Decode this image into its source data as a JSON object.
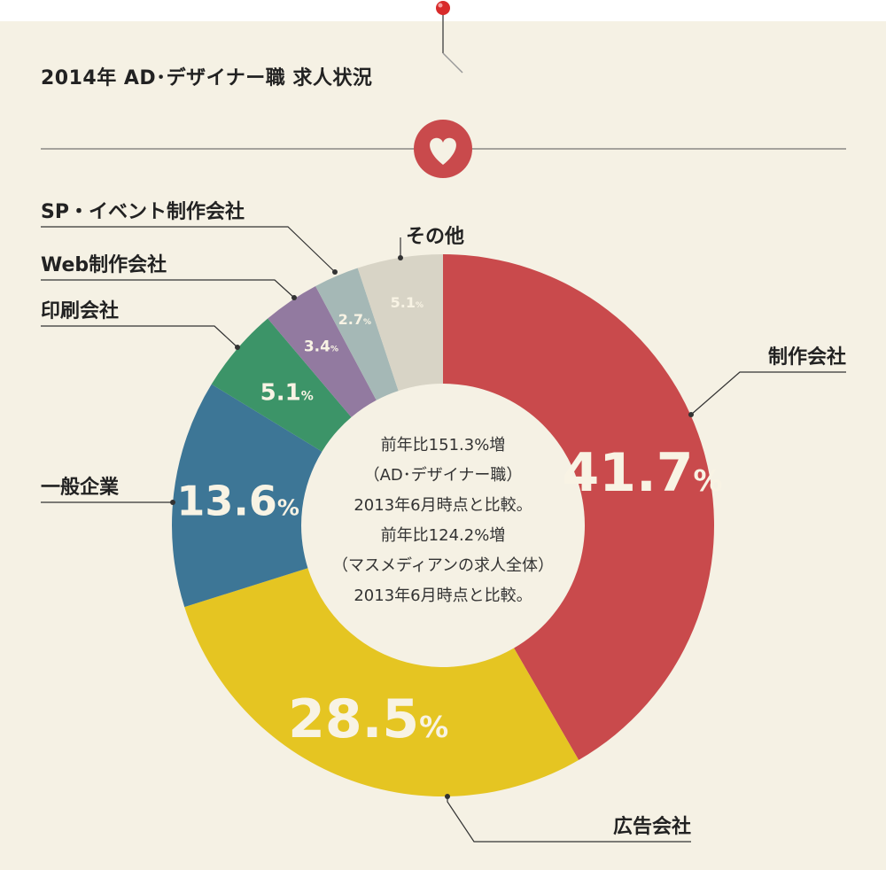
{
  "title": "2014年 AD･デザイナー職 求人状況",
  "center_lines": [
    "前年比151.3%増",
    "（AD･デザイナー職）",
    "2013年6月時点と比較。",
    "前年比124.2%増",
    "（マスメディアンの求人全体）",
    "2013年6月時点と比較。"
  ],
  "colors": {
    "background": "#f5f1e4",
    "accent": "#c94a4c",
    "line": "#333333"
  },
  "icons": {
    "badge": "heart-icon",
    "pin": "pushpin-icon"
  },
  "chart_data": {
    "type": "pie",
    "donut": true,
    "start": "12 o'clock",
    "direction": "clockwise",
    "slices": [
      {
        "label": "制作会社",
        "value": 41.7,
        "display": "41.7",
        "unit": "%",
        "color": "#c94a4c",
        "text_color": "#f8f3e4"
      },
      {
        "label": "広告会社",
        "value": 28.5,
        "display": "28.5",
        "unit": "%",
        "color": "#e5c522",
        "text_color": "#f8f3e4"
      },
      {
        "label": "一般企業",
        "value": 13.6,
        "display": "13.6",
        "unit": "%",
        "color": "#3d7696",
        "text_color": "#f8f3e4"
      },
      {
        "label": "印刷会社",
        "value": 5.1,
        "display": "5.1",
        "unit": "%",
        "color": "#3c9468",
        "text_color": "#f8f3e4"
      },
      {
        "label": "Web制作会社",
        "value": 3.4,
        "display": "3.4",
        "unit": "%",
        "color": "#927aa0",
        "text_color": "#f8f3e4"
      },
      {
        "label": "SP・イベント制作会社",
        "value": 2.7,
        "display": "2.7",
        "unit": "%",
        "color": "#a5b8b6",
        "text_color": "#f8f3e4"
      },
      {
        "label": "その他",
        "value": 5.1,
        "display": "5.1",
        "unit": "%",
        "color": "#d8d4c6",
        "text_color": "#6f6b60"
      }
    ]
  }
}
